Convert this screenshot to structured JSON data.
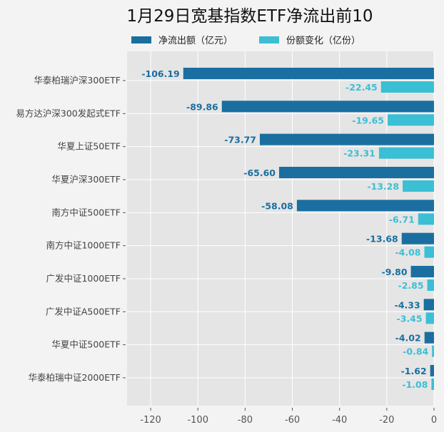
{
  "chart_data": {
    "type": "bar",
    "orientation": "horizontal",
    "title": "1月29日宽基指数ETF净流出前10",
    "categories": [
      "华泰柏瑞沪深300ETF",
      "易方达沪深300发起式ETF",
      "华夏上证50ETF",
      "华夏沪深300ETF",
      "南方中证500ETF",
      "南方中证1000ETF",
      "广发中证1000ETF",
      "广发中证A500ETF",
      "华夏中证500ETF",
      "华泰柏瑞中证2000ETF"
    ],
    "series": [
      {
        "name": "净流出额（亿元）",
        "color": "#1a6fa0",
        "values": [
          -106.19,
          -89.86,
          -73.77,
          -65.6,
          -58.08,
          -13.68,
          -9.8,
          -4.33,
          -4.02,
          -1.62
        ],
        "labels": [
          "-106.19",
          "-89.86",
          "-73.77",
          "-65.60",
          "-58.08",
          "-13.68",
          "-9.80",
          "-4.33",
          "-4.02",
          "-1.62"
        ]
      },
      {
        "name": "份额变化（亿份）",
        "color": "#3bbfd4",
        "values": [
          -22.45,
          -19.65,
          -23.31,
          -13.28,
          -6.71,
          -4.08,
          -2.85,
          -3.45,
          -0.84,
          -1.08
        ],
        "labels": [
          "-22.45",
          "-19.65",
          "-23.31",
          "-13.28",
          "-6.71",
          "-4.08",
          "-2.85",
          "-3.45",
          "-0.84",
          "-1.08"
        ]
      }
    ],
    "xlim": [
      -130,
      0
    ],
    "xticks": [
      "-120",
      "-100",
      "-80",
      "-60",
      "-40",
      "-20",
      "0"
    ],
    "xtick_values": [
      -120,
      -100,
      -80,
      -60,
      -40,
      -20,
      0
    ],
    "grid": true,
    "legend": "top-center",
    "plot_bg": "#e5e5e5"
  }
}
